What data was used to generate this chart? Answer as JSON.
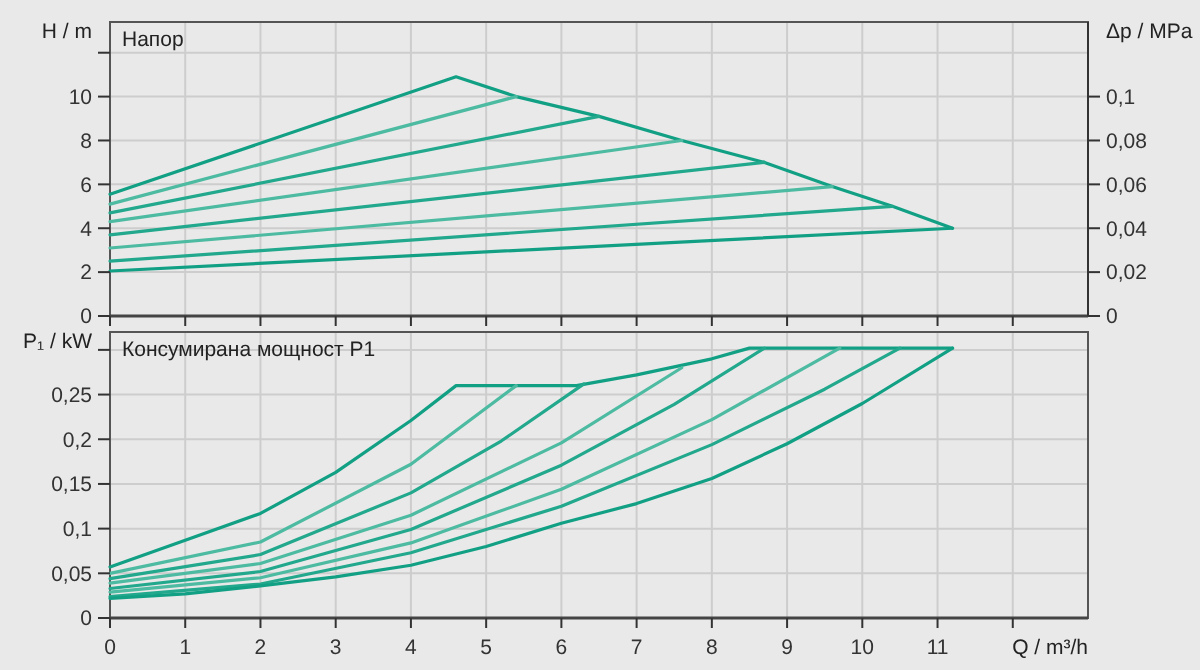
{
  "chart_data": [
    {
      "type": "line",
      "title": "Напор",
      "ylabel": "H / m",
      "y2label": "Δp / MPa",
      "xlim": [
        0,
        13
      ],
      "xticks": [
        {
          "value": 0,
          "label": null
        },
        {
          "value": 1,
          "label": null
        },
        {
          "value": 2,
          "label": null
        },
        {
          "value": 3,
          "label": null
        },
        {
          "value": 4,
          "label": null
        },
        {
          "value": 5,
          "label": null
        },
        {
          "value": 6,
          "label": null
        },
        {
          "value": 7,
          "label": null
        },
        {
          "value": 8,
          "label": null
        },
        {
          "value": 9,
          "label": null
        },
        {
          "value": 10,
          "label": null
        },
        {
          "value": 11,
          "label": null
        },
        {
          "value": 12,
          "label": null
        }
      ],
      "ylim": [
        0,
        13.4
      ],
      "yticks": [
        0,
        2,
        4,
        6,
        8,
        10,
        {
          "value": 12,
          "label": null
        }
      ],
      "y2lim": [
        0,
        0.134
      ],
      "y2ticks": [
        0,
        {
          "value": 0.02,
          "label": "0,02"
        },
        {
          "value": 0.04,
          "label": "0,04"
        },
        {
          "value": 0.06,
          "label": "0,06"
        },
        {
          "value": 0.08,
          "label": "0,08"
        },
        {
          "value": 0.1,
          "label": "0,1"
        }
      ],
      "grid": true,
      "tick_labels": "y",
      "series": [
        {
          "color": "#12a085",
          "x": [
            0,
            4.6,
            5.4,
            6.5,
            7.6,
            8.7,
            9.6,
            10.4,
            11.2
          ],
          "values": [
            5.55,
            10.9,
            10.0,
            9.1,
            8.0,
            7.0,
            5.9,
            5.0,
            4.0
          ]
        },
        {
          "color": "#4dbba1",
          "x": [
            0,
            5.4
          ],
          "values": [
            5.1,
            10.0
          ]
        },
        {
          "color": "#22a88c",
          "x": [
            0,
            6.5
          ],
          "values": [
            4.7,
            9.1
          ]
        },
        {
          "color": "#4dbba1",
          "x": [
            0,
            7.6
          ],
          "values": [
            4.3,
            8.0
          ]
        },
        {
          "color": "#22a88c",
          "x": [
            0,
            8.7
          ],
          "values": [
            3.7,
            7.0
          ]
        },
        {
          "color": "#4dbba1",
          "x": [
            0,
            9.6
          ],
          "values": [
            3.1,
            5.9
          ]
        },
        {
          "color": "#22a88c",
          "x": [
            0,
            10.4
          ],
          "values": [
            2.5,
            5.0
          ]
        },
        {
          "color": "#12a085",
          "x": [
            0,
            11.2
          ],
          "values": [
            2.05,
            4.0
          ]
        }
      ]
    },
    {
      "type": "line",
      "title": "Консумирана мощност P1",
      "ylabel": "P₁ / kW",
      "xlabel": "Q / m³/h",
      "xlim": [
        0,
        13
      ],
      "xticks": [
        0,
        1,
        2,
        3,
        4,
        5,
        6,
        7,
        8,
        9,
        10,
        11,
        {
          "value": 12,
          "label": null
        }
      ],
      "ylim": [
        0,
        0.32
      ],
      "yticks": [
        0,
        {
          "value": 0.05,
          "label": "0,05"
        },
        {
          "value": 0.1,
          "label": "0,1"
        },
        {
          "value": 0.15,
          "label": "0,15"
        },
        {
          "value": 0.2,
          "label": "0,2"
        },
        {
          "value": 0.25,
          "label": "0,25"
        },
        {
          "value": 0.3,
          "label": null
        }
      ],
      "grid": true,
      "series": [
        {
          "color": "#12a085",
          "x": [
            0,
            1,
            2,
            3,
            4,
            4.6,
            6.2,
            7,
            8,
            8.5,
            11.2
          ],
          "values": [
            0.057,
            0.087,
            0.117,
            0.163,
            0.221,
            0.26,
            0.26,
            0.272,
            0.29,
            0.302,
            0.302
          ]
        },
        {
          "color": "#4dbba1",
          "x": [
            0,
            2,
            4,
            5.4
          ],
          "values": [
            0.05,
            0.085,
            0.172,
            0.26
          ]
        },
        {
          "color": "#22a88c",
          "x": [
            0,
            2,
            4,
            5.2,
            6.3
          ],
          "values": [
            0.044,
            0.071,
            0.14,
            0.198,
            0.262
          ]
        },
        {
          "color": "#4dbba1",
          "x": [
            0,
            2,
            4,
            6,
            7.6
          ],
          "values": [
            0.039,
            0.061,
            0.115,
            0.196,
            0.28
          ]
        },
        {
          "color": "#22a88c",
          "x": [
            0,
            2,
            4,
            6,
            7.5,
            8.7
          ],
          "values": [
            0.033,
            0.052,
            0.099,
            0.171,
            0.239,
            0.302
          ]
        },
        {
          "color": "#4dbba1",
          "x": [
            0,
            2,
            4,
            6,
            8,
            9.7
          ],
          "values": [
            0.029,
            0.045,
            0.084,
            0.144,
            0.222,
            0.302
          ]
        },
        {
          "color": "#22a88c",
          "x": [
            0,
            2,
            4,
            6,
            8,
            9.5,
            10.5
          ],
          "values": [
            0.024,
            0.038,
            0.073,
            0.125,
            0.194,
            0.256,
            0.302
          ]
        },
        {
          "color": "#12a085",
          "x": [
            0,
            1,
            2,
            3,
            4,
            5,
            6,
            7,
            8,
            9,
            10,
            11.2
          ],
          "values": [
            0.022,
            0.027,
            0.036,
            0.046,
            0.059,
            0.08,
            0.106,
            0.128,
            0.156,
            0.195,
            0.24,
            0.302
          ]
        }
      ]
    }
  ]
}
